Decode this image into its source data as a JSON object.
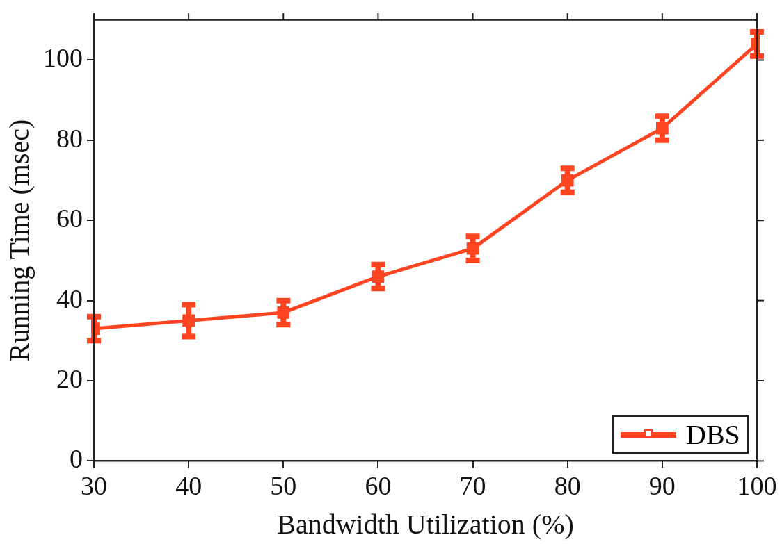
{
  "chart_data": {
    "type": "line",
    "xlabel": "Bandwidth Utilization (%)",
    "ylabel": "Running Time (msec)",
    "x": [
      30,
      40,
      50,
      60,
      70,
      80,
      90,
      100
    ],
    "series": [
      {
        "name": "DBS",
        "color": "#ff4422",
        "values": [
          33,
          35,
          37,
          46,
          53,
          70,
          83,
          104
        ],
        "errors": [
          3,
          4,
          3,
          3,
          3,
          3,
          3,
          3
        ]
      }
    ],
    "xlim": [
      30,
      100
    ],
    "xticks": [
      30,
      40,
      50,
      60,
      70,
      80,
      90,
      100
    ],
    "ylim": [
      0,
      110
    ],
    "yticks": [
      0,
      20,
      40,
      60,
      80,
      100
    ],
    "grid": false,
    "legend": "bottom right",
    "marker": "square",
    "line_style": "solid"
  }
}
